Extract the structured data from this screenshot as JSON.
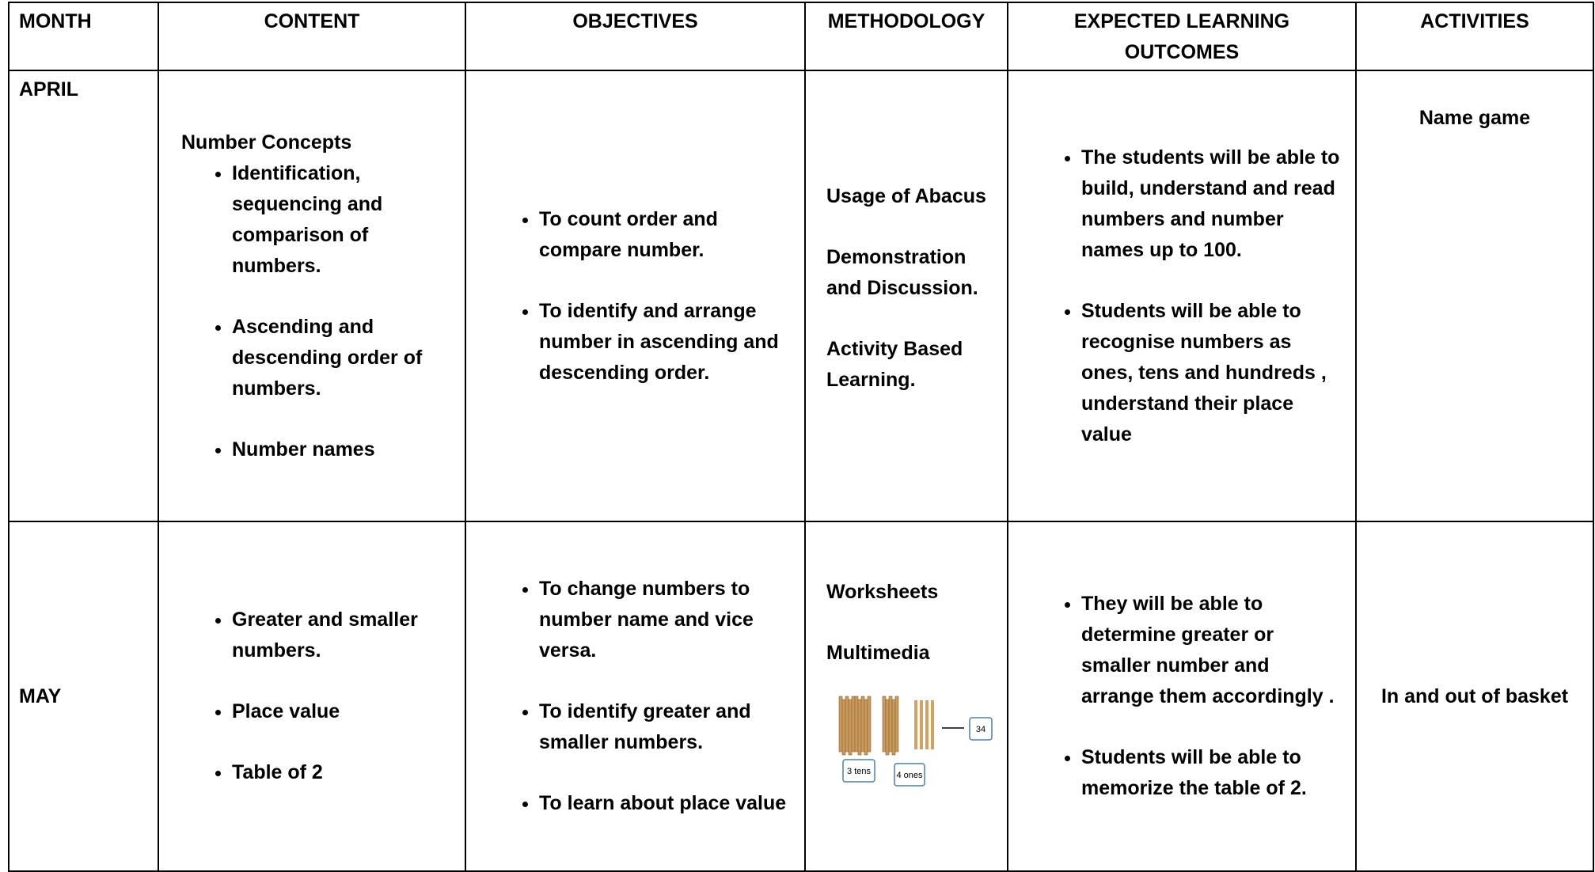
{
  "table": {
    "headers": [
      "MONTH",
      "CONTENT",
      "OBJECTIVES",
      "METHODOLOGY",
      "EXPECTED LEARNING OUTCOMES",
      "ACTIVITIES"
    ],
    "rows": [
      {
        "month": "APRIL",
        "content": {
          "heading": "Number Concepts",
          "bullets": [
            "Identification, sequencing and comparison of numbers.",
            "Ascending and descending order of numbers.",
            "Number names"
          ]
        },
        "objectives": {
          "bullets": [
            "To count order and compare number.",
            "To identify and arrange number in ascending and descending order."
          ]
        },
        "methodology": {
          "paragraphs": [
            "Usage of Abacus",
            "Demonstration and Discussion.",
            "Activity Based Learning."
          ]
        },
        "outcomes": {
          "bullets": [
            "The students will be able to build, understand and read numbers and number names up to 100.",
            "Students will be able to recognise numbers as ones, tens and hundreds , understand their place  value"
          ]
        },
        "activities": "Name game"
      },
      {
        "month": "MAY",
        "content": {
          "bullets": [
            "Greater and smaller numbers.",
            "Place value",
            "Table of 2"
          ]
        },
        "objectives": {
          "bullets": [
            "To change numbers to number name and vice versa.",
            "To identify greater and smaller  numbers.",
            "To learn about place value"
          ]
        },
        "methodology": {
          "paragraphs": [
            "Worksheets",
            "Multimedia"
          ],
          "figure_labels": [
            "3 tens",
            "4 ones",
            "34"
          ]
        },
        "outcomes": {
          "bullets": [
            "They will be able to determine greater or smaller number and arrange them accordingly .",
            "Students will be able to memorize the table of 2."
          ]
        },
        "activities": "In and out of basket"
      }
    ]
  }
}
